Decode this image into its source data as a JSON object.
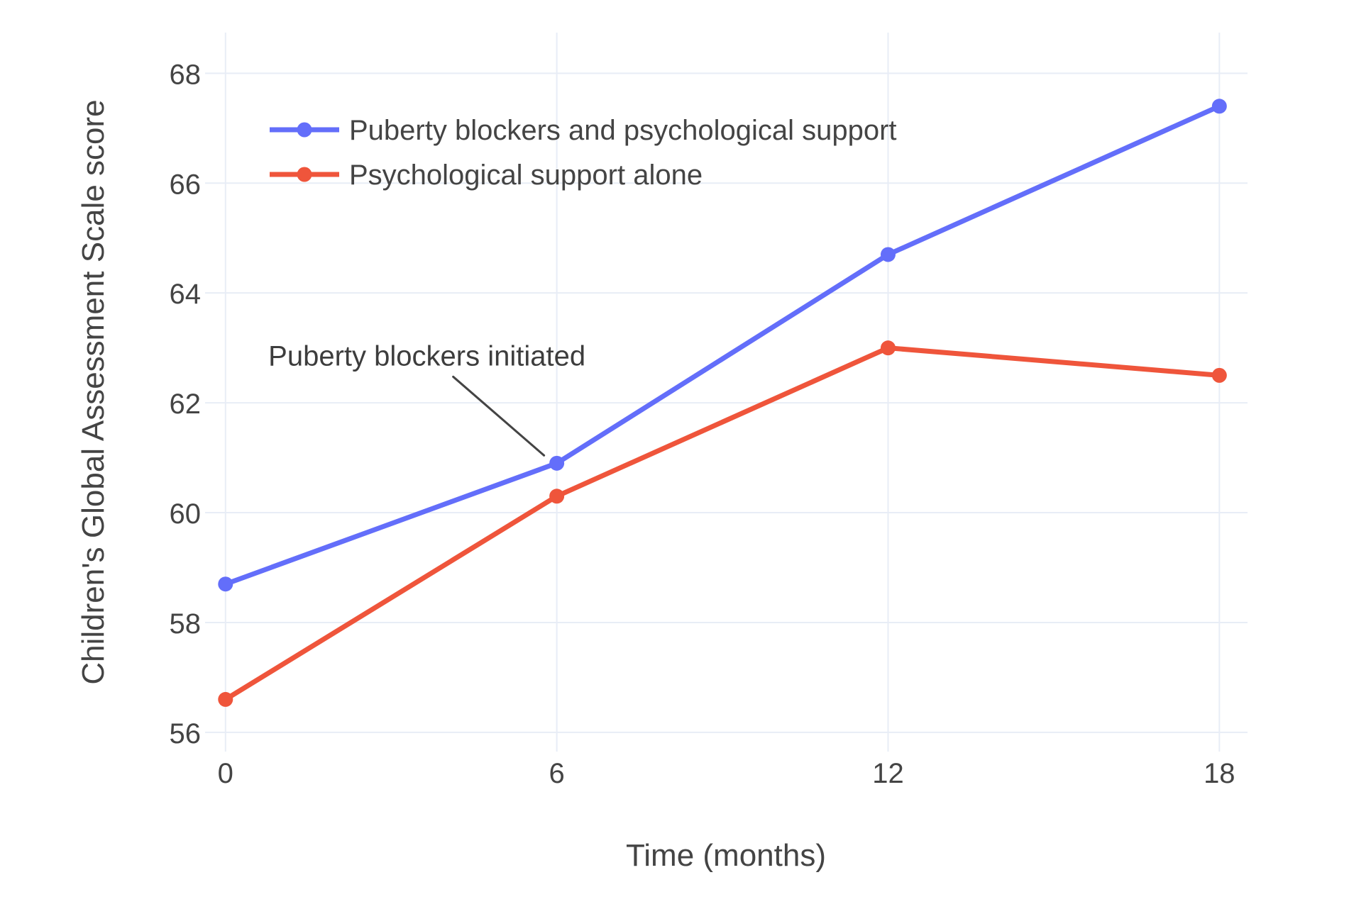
{
  "chart_data": {
    "type": "line",
    "title": "",
    "xlabel": "Time (months)",
    "ylabel": "Children's Global Assessment Scale score",
    "x": [
      0,
      6,
      12,
      18
    ],
    "series": [
      {
        "name": "Puberty blockers and psychological support",
        "color": "#636EFA",
        "values": [
          58.7,
          60.9,
          64.7,
          67.4
        ]
      },
      {
        "name": "Psychological support alone",
        "color": "#EF553B",
        "values": [
          56.6,
          60.3,
          63.0,
          62.5
        ]
      }
    ],
    "xticks": [
      0,
      6,
      12,
      18
    ],
    "yticks": [
      56,
      58,
      60,
      62,
      64,
      66,
      68
    ],
    "xlim": [
      -0.37,
      18.51
    ],
    "ylim": [
      55.65,
      68.74
    ],
    "grid": true,
    "legend_position": "top-left",
    "annotation": {
      "text": "Puberty blockers initiated",
      "x": 6,
      "y": 60.9
    },
    "colors": {
      "background": "#FFFFFF",
      "grid": "#E8EDF6",
      "text": "#444444",
      "annotation_line": "#444444"
    }
  }
}
